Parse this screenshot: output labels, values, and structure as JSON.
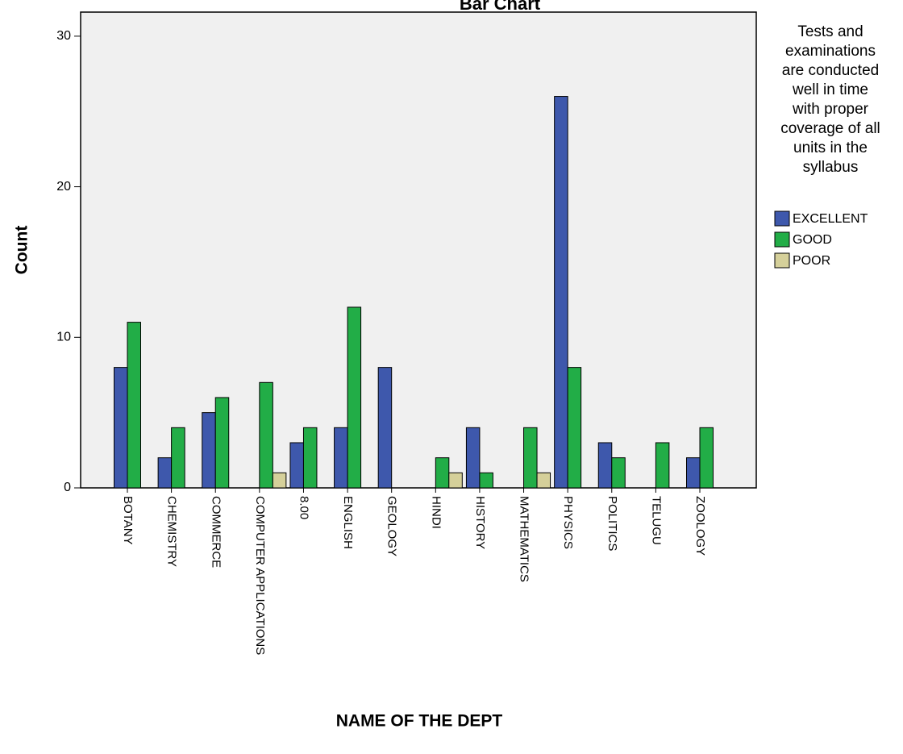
{
  "chart_data": {
    "type": "bar",
    "title": "Bar Chart",
    "x_label": "NAME OF THE DEPT",
    "y_label": "Count",
    "legend_title": "Tests and\nexaminations\nare conducted\nwell in time\nwith proper\ncoverage of all\nunits in the\nsyllabus",
    "categories": [
      "BOTANY",
      "CHEMISTRY",
      "COMMERCE",
      "COMPUTER APPLICATIONS",
      "8.00",
      "ENGLISH",
      "GEOLOGY",
      "HINDI",
      "HISTORY",
      "MATHEMATICS",
      "PHYSICS",
      "POLITICS",
      "TELUGU",
      "ZOOLOGY"
    ],
    "series": [
      {
        "name": "EXCELLENT",
        "color": "#3e58ac",
        "values": [
          8,
          2,
          5,
          null,
          3,
          4,
          8,
          null,
          4,
          null,
          26,
          3,
          null,
          2
        ]
      },
      {
        "name": "GOOD",
        "color": "#22ad47",
        "values": [
          11,
          4,
          6,
          7,
          4,
          12,
          null,
          2,
          1,
          4,
          8,
          2,
          3,
          4
        ]
      },
      {
        "name": "POOR",
        "color": "#d5d09a",
        "values": [
          null,
          null,
          null,
          1,
          null,
          null,
          null,
          1,
          null,
          1,
          null,
          null,
          null,
          null
        ]
      }
    ],
    "ylim": [
      0,
      31.6
    ],
    "yticks": [
      0,
      10,
      20,
      30
    ],
    "grid": false
  }
}
